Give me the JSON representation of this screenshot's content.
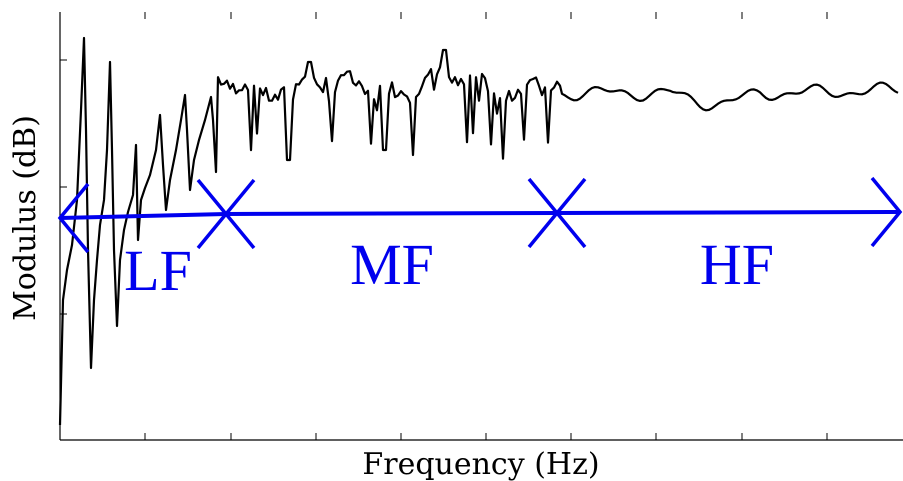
{
  "chart_data": {
    "type": "line",
    "title": "",
    "xlabel": "Frequency (Hz)",
    "ylabel": "Modulus (dB)",
    "ticks_labeled": false,
    "grid": false,
    "legend": "none",
    "colors": {
      "curve": "#000000",
      "bands": "#0000ee",
      "axes": "#000000"
    },
    "bands": [
      {
        "label": "LF"
      },
      {
        "label": "MF"
      },
      {
        "label": "HF"
      }
    ]
  }
}
